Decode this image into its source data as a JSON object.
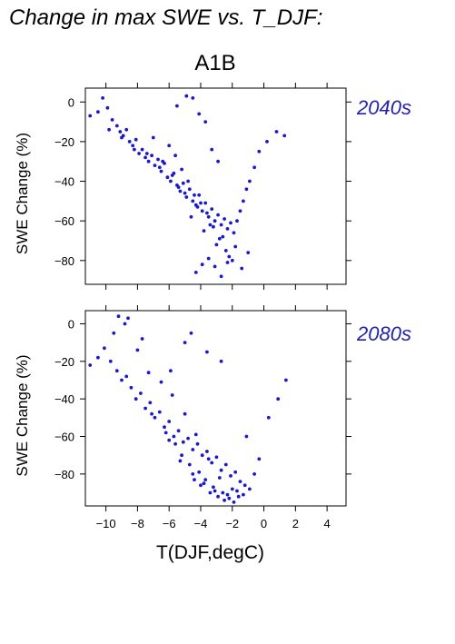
{
  "page": {
    "title": "Change in max SWE vs. T_DJF:",
    "scenario": "A1B"
  },
  "colors": {
    "points": "#1a1acc",
    "period_label": "#2222aa",
    "axes": "#000000"
  },
  "chart_data": [
    {
      "type": "scatter",
      "period": "2040s",
      "ylabel": "SWE Change (%)",
      "xlabel": "",
      "xlim": [
        -11.3,
        5.2
      ],
      "ylim": [
        -92,
        7
      ],
      "yticks": [
        0,
        -20,
        -40,
        -60,
        -80
      ],
      "xticks": [
        -10,
        -8,
        -6,
        -4,
        -2,
        0,
        2,
        4
      ],
      "x": [
        -11.0,
        -10.5,
        -10.2,
        -9.9,
        -9.6,
        -9.3,
        -9.1,
        -8.9,
        -8.7,
        -8.5,
        -8.3,
        -8.1,
        -7.9,
        -7.7,
        -7.5,
        -7.3,
        -7.1,
        -6.9,
        -6.7,
        -6.5,
        -6.3,
        -6.1,
        -5.9,
        -5.7,
        -5.5,
        -5.3,
        -5.1,
        -4.9,
        -4.7,
        -4.5,
        -4.3,
        -4.1,
        -3.9,
        -3.7,
        -3.5,
        -3.3,
        -3.1,
        -2.9,
        -2.7,
        -2.5,
        -2.3,
        -2.1,
        -1.9,
        -1.7,
        -1.5,
        -1.3,
        -1.1,
        -0.9,
        -0.6,
        -0.3,
        0.2,
        0.8,
        1.3,
        -9.8,
        -9.0,
        -8.2,
        -7.4,
        -6.6,
        -5.8,
        -5.0,
        -4.2,
        -3.4,
        -2.6,
        -1.8,
        -1.0,
        -6.0,
        -5.6,
        -5.2,
        -4.8,
        -4.4,
        -4.0,
        -3.6,
        -3.2,
        -2.8,
        -2.4,
        -2.0,
        -7.0,
        -6.4,
        -5.4,
        -4.6,
        -3.8,
        -3.0,
        -2.2,
        -1.4,
        -4.3,
        -3.9,
        -3.5,
        -3.1,
        -2.7,
        -2.3,
        -5.5,
        -4.9,
        -4.5,
        -4.1,
        -3.7,
        -3.3,
        -2.9
      ],
      "y": [
        -7,
        -5,
        2,
        -3,
        -9,
        -12,
        -15,
        -17,
        -14,
        -20,
        -22,
        -19,
        -26,
        -24,
        -28,
        -30,
        -27,
        -32,
        -29,
        -35,
        -31,
        -38,
        -40,
        -36,
        -42,
        -45,
        -41,
        -48,
        -44,
        -50,
        -52,
        -47,
        -55,
        -51,
        -58,
        -54,
        -60,
        -57,
        -62,
        -59,
        -64,
        -61,
        -66,
        -60,
        -55,
        -50,
        -44,
        -40,
        -33,
        -25,
        -20,
        -15,
        -17,
        -14,
        -18,
        -24,
        -26,
        -33,
        -37,
        -46,
        -53,
        -62,
        -68,
        -73,
        -76,
        -22,
        -27,
        -34,
        -40,
        -47,
        -51,
        -56,
        -63,
        -69,
        -75,
        -80,
        -18,
        -30,
        -43,
        -58,
        -65,
        -72,
        -78,
        -84,
        -86,
        -82,
        -79,
        -83,
        -88,
        -81,
        -2,
        3,
        2,
        -6,
        -10,
        -24,
        -30
      ]
    },
    {
      "type": "scatter",
      "period": "2080s",
      "ylabel": "SWE Change (%)",
      "xlabel": "T(DJF,degC)",
      "xlim": [
        -11.3,
        5.2
      ],
      "ylim": [
        -97,
        7
      ],
      "yticks": [
        0,
        -20,
        -40,
        -60,
        -80
      ],
      "xticks": [
        -10,
        -8,
        -6,
        -4,
        -2,
        0,
        2,
        4
      ],
      "x": [
        -11.0,
        -10.5,
        -10.1,
        -9.7,
        -9.3,
        -9.0,
        -8.7,
        -8.4,
        -8.1,
        -7.8,
        -7.5,
        -7.2,
        -6.9,
        -6.6,
        -6.3,
        -6.0,
        -5.7,
        -5.4,
        -5.1,
        -4.8,
        -4.5,
        -4.2,
        -3.9,
        -3.6,
        -3.3,
        -3.0,
        -2.7,
        -2.4,
        -2.1,
        -1.8,
        -1.5,
        -1.2,
        -0.9,
        -0.6,
        -0.3,
        0.3,
        0.9,
        1.4,
        -9.5,
        -8.8,
        -8.0,
        -7.3,
        -6.5,
        -5.8,
        -5.0,
        -4.3,
        -3.5,
        -2.8,
        -2.0,
        -1.3,
        -6.2,
        -5.6,
        -5.2,
        -4.7,
        -4.1,
        -3.7,
        -3.2,
        -2.6,
        -2.2,
        -1.6,
        -7.1,
        -6.0,
        -5.3,
        -4.5,
        -3.8,
        -3.1,
        -2.5,
        -1.9,
        -4.4,
        -4.0,
        -3.4,
        -2.9,
        -2.3,
        -1.7,
        -5.9,
        -5.0,
        -4.6,
        -3.6,
        -2.7,
        -1.1,
        -9.2,
        -8.6,
        -7.7
      ],
      "y": [
        -22,
        -18,
        -13,
        -20,
        -25,
        -30,
        -28,
        -34,
        -40,
        -37,
        -45,
        -42,
        -50,
        -47,
        -55,
        -52,
        -60,
        -57,
        -63,
        -61,
        -67,
        -64,
        -70,
        -68,
        -74,
        -71,
        -78,
        -75,
        -81,
        -79,
        -84,
        -86,
        -88,
        -80,
        -72,
        -50,
        -40,
        -30,
        -5,
        0,
        -14,
        -26,
        -31,
        -38,
        -48,
        -59,
        -72,
        -82,
        -88,
        -91,
        -58,
        -64,
        -70,
        -75,
        -79,
        -83,
        -87,
        -90,
        -93,
        -92,
        -48,
        -62,
        -73,
        -80,
        -85,
        -89,
        -94,
        -95,
        -83,
        -86,
        -90,
        -92,
        -91,
        -89,
        -25,
        -10,
        -5,
        -15,
        -20,
        -60,
        4,
        3,
        -8
      ]
    }
  ]
}
